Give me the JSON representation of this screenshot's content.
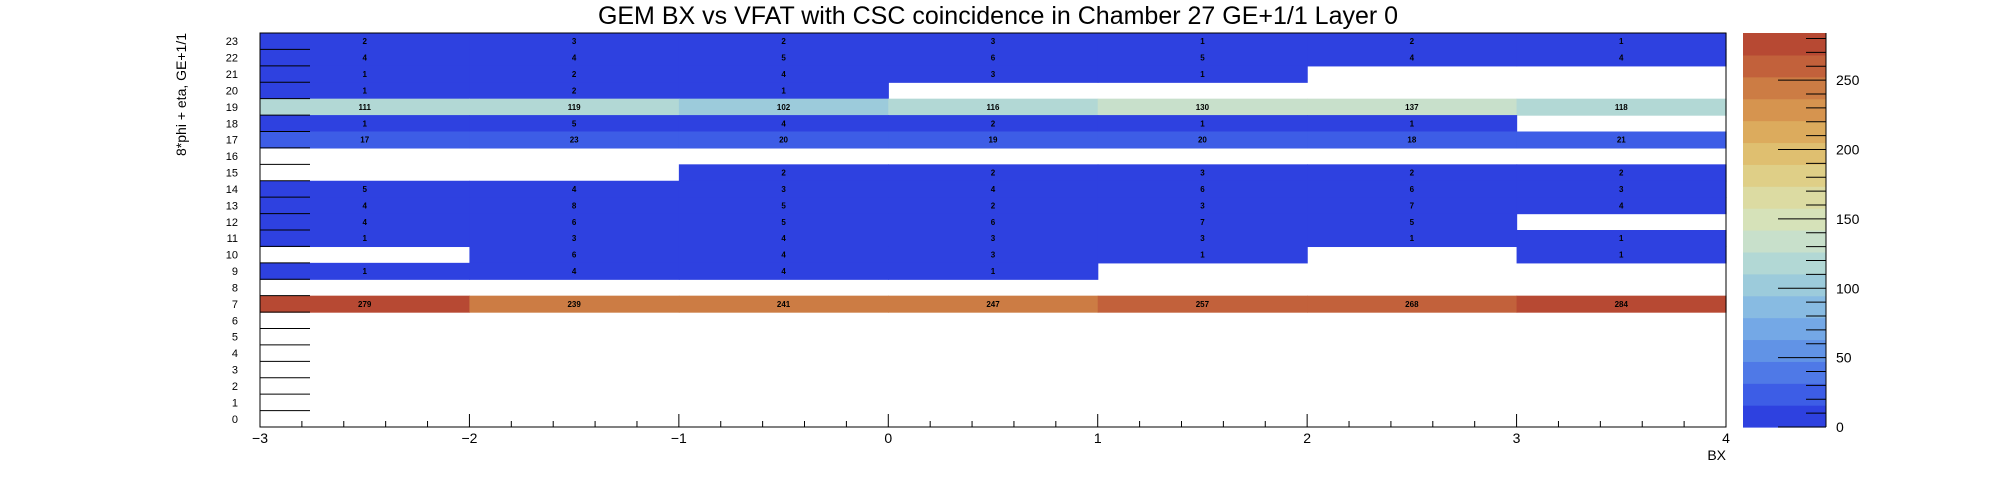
{
  "chart_data": {
    "type": "heatmap",
    "title": "GEM BX vs VFAT with CSC coincidence in Chamber 27 GE+1/1 Layer 0",
    "xlabel": "BX",
    "ylabel": "8*phi + eta, GE+1/1",
    "xlim": [
      -3,
      4
    ],
    "ylim": [
      0,
      24
    ],
    "x_ticks": [
      "−3",
      "−2",
      "−1",
      "0",
      "1",
      "2",
      "3",
      "4"
    ],
    "y_ticks": [
      "0",
      "1",
      "2",
      "3",
      "4",
      "5",
      "6",
      "7",
      "8",
      "9",
      "10",
      "11",
      "12",
      "13",
      "14",
      "15",
      "16",
      "17",
      "18",
      "19",
      "20",
      "21",
      "22",
      "23"
    ],
    "x_bins": [
      "-3",
      "-2",
      "-1",
      "0",
      "1",
      "2",
      "3"
    ],
    "y_bins": [
      "23",
      "22",
      "21",
      "20",
      "19",
      "18",
      "17",
      "16",
      "15",
      "14",
      "13",
      "12",
      "11",
      "10",
      "9",
      "8",
      "7",
      "6",
      "5",
      "4",
      "3",
      "2",
      "1",
      "0"
    ],
    "values": [
      [
        2,
        3,
        2,
        3,
        1,
        2,
        1
      ],
      [
        4,
        4,
        5,
        6,
        5,
        4,
        4
      ],
      [
        1,
        2,
        4,
        3,
        1,
        null,
        null
      ],
      [
        1,
        2,
        1,
        null,
        null,
        null,
        null
      ],
      [
        111,
        119,
        102,
        116,
        130,
        137,
        118
      ],
      [
        1,
        5,
        4,
        2,
        1,
        1,
        null
      ],
      [
        17,
        23,
        20,
        19,
        20,
        18,
        21
      ],
      [
        null,
        null,
        null,
        null,
        null,
        null,
        null
      ],
      [
        null,
        null,
        2,
        2,
        3,
        2,
        2
      ],
      [
        5,
        4,
        3,
        4,
        6,
        6,
        3
      ],
      [
        4,
        8,
        5,
        2,
        3,
        7,
        4
      ],
      [
        4,
        6,
        5,
        6,
        7,
        5,
        null
      ],
      [
        1,
        3,
        4,
        3,
        3,
        1,
        1
      ],
      [
        null,
        6,
        4,
        3,
        1,
        null,
        1
      ],
      [
        1,
        4,
        4,
        1,
        null,
        null,
        null
      ],
      [
        null,
        null,
        null,
        null,
        null,
        null,
        null
      ],
      [
        279,
        239,
        241,
        247,
        257,
        268,
        284
      ],
      [
        null,
        null,
        null,
        null,
        null,
        null,
        null
      ],
      [
        null,
        null,
        null,
        null,
        null,
        null,
        null
      ],
      [
        null,
        null,
        null,
        null,
        null,
        null,
        null
      ],
      [
        null,
        null,
        null,
        null,
        null,
        null,
        null
      ],
      [
        null,
        null,
        null,
        null,
        null,
        null,
        null
      ],
      [
        null,
        null,
        null,
        null,
        null,
        null,
        null
      ],
      [
        null,
        null,
        null,
        null,
        null,
        null,
        null
      ]
    ],
    "z_range": [
      0,
      284
    ],
    "colorbar_ticks": [
      "0",
      "50",
      "100",
      "150",
      "200",
      "250"
    ],
    "colorbar_tick_values": [
      0,
      50,
      100,
      150,
      200,
      250
    ],
    "palette": [
      "#2e41e0",
      "#3d5de6",
      "#4f79e7",
      "#6193e6",
      "#74a8e6",
      "#88bbe2",
      "#9ccbdb",
      "#b2d8d5",
      "#c8e0cb",
      "#d6e2b9",
      "#dcdba2",
      "#dfcf87",
      "#dfbf70",
      "#dcab5d",
      "#d6944f",
      "#cc7c44",
      "#c2613b",
      "#b74933"
    ],
    "grid": false,
    "legend": "none"
  }
}
